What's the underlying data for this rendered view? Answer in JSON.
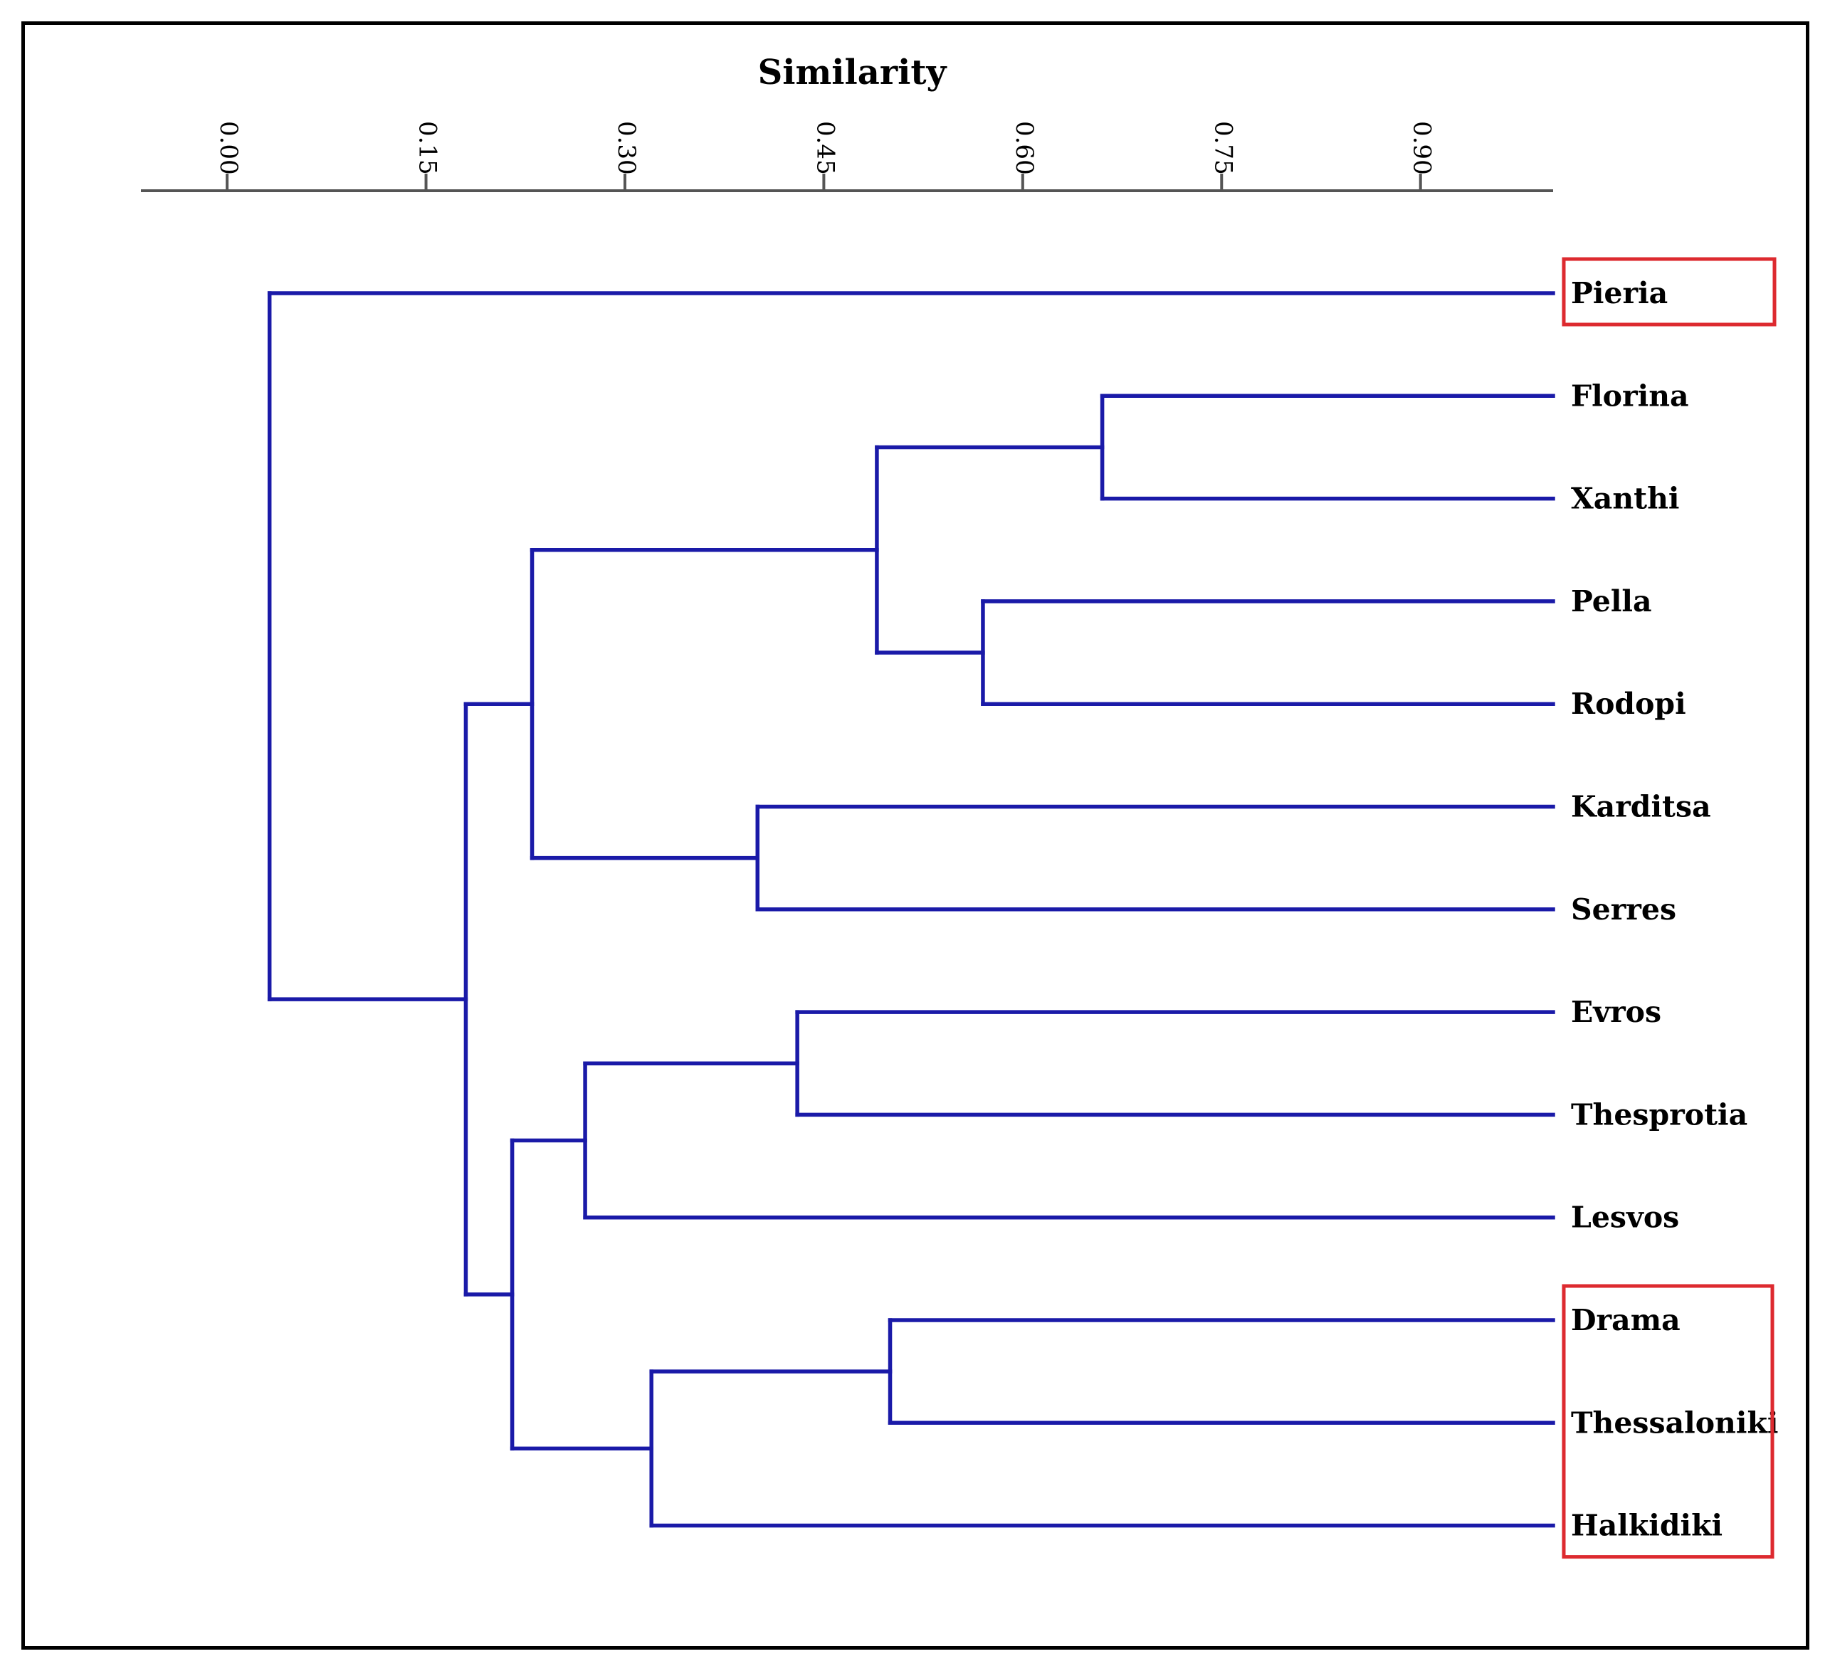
{
  "chart_data": {
    "type": "dendrogram",
    "title": "Similarity",
    "xlabel": "Similarity",
    "xlim": [
      -0.065,
      1.0
    ],
    "ticks": [
      {
        "value": 0.0,
        "label": "0.00"
      },
      {
        "value": 0.15,
        "label": "0.15"
      },
      {
        "value": 0.3,
        "label": "0.30"
      },
      {
        "value": 0.45,
        "label": "0.45"
      },
      {
        "value": 0.6,
        "label": "0.60"
      },
      {
        "value": 0.75,
        "label": "0.75"
      },
      {
        "value": 0.9,
        "label": "0.90"
      }
    ],
    "leaves": [
      "Pieria",
      "Florina",
      "Xanthi",
      "Pella",
      "Rodopi",
      "Karditsa",
      "Serres",
      "Evros",
      "Thesprotia",
      "Lesvos",
      "Drama",
      "Thessaloniki",
      "Halkidiki"
    ],
    "leaf_similarity": 1.0,
    "merges": [
      {
        "id": "m1",
        "children": [
          "Florina",
          "Xanthi"
        ],
        "similarity": 0.66
      },
      {
        "id": "m2",
        "children": [
          "Pella",
          "Rodopi"
        ],
        "similarity": 0.57
      },
      {
        "id": "m3",
        "children": [
          "m1",
          "m2"
        ],
        "similarity": 0.49
      },
      {
        "id": "m4",
        "children": [
          "Karditsa",
          "Serres"
        ],
        "similarity": 0.4
      },
      {
        "id": "m5",
        "children": [
          "m3",
          "m4"
        ],
        "similarity": 0.23
      },
      {
        "id": "m6",
        "children": [
          "Evros",
          "Thesprotia"
        ],
        "similarity": 0.43
      },
      {
        "id": "m7",
        "children": [
          "m6",
          "Lesvos"
        ],
        "similarity": 0.27
      },
      {
        "id": "m8",
        "children": [
          "Drama",
          "Thessaloniki"
        ],
        "similarity": 0.5
      },
      {
        "id": "m9",
        "children": [
          "m8",
          "Halkidiki"
        ],
        "similarity": 0.32
      },
      {
        "id": "m10",
        "children": [
          "m7",
          "m9"
        ],
        "similarity": 0.215
      },
      {
        "id": "m11",
        "children": [
          "m5",
          "m10"
        ],
        "similarity": 0.18
      },
      {
        "id": "m12",
        "children": [
          "Pieria",
          "m11"
        ],
        "similarity": 0.032
      }
    ],
    "highlight_boxes": [
      {
        "leaves": [
          "Pieria"
        ],
        "color": "#dd2a2f"
      },
      {
        "leaves": [
          "Drama",
          "Thessaloniki",
          "Halkidiki"
        ],
        "color": "#dd2a2f"
      }
    ],
    "colors": {
      "branch": "#1a1aa8",
      "axis": "#555555",
      "highlight": "#dd2a2f"
    }
  }
}
